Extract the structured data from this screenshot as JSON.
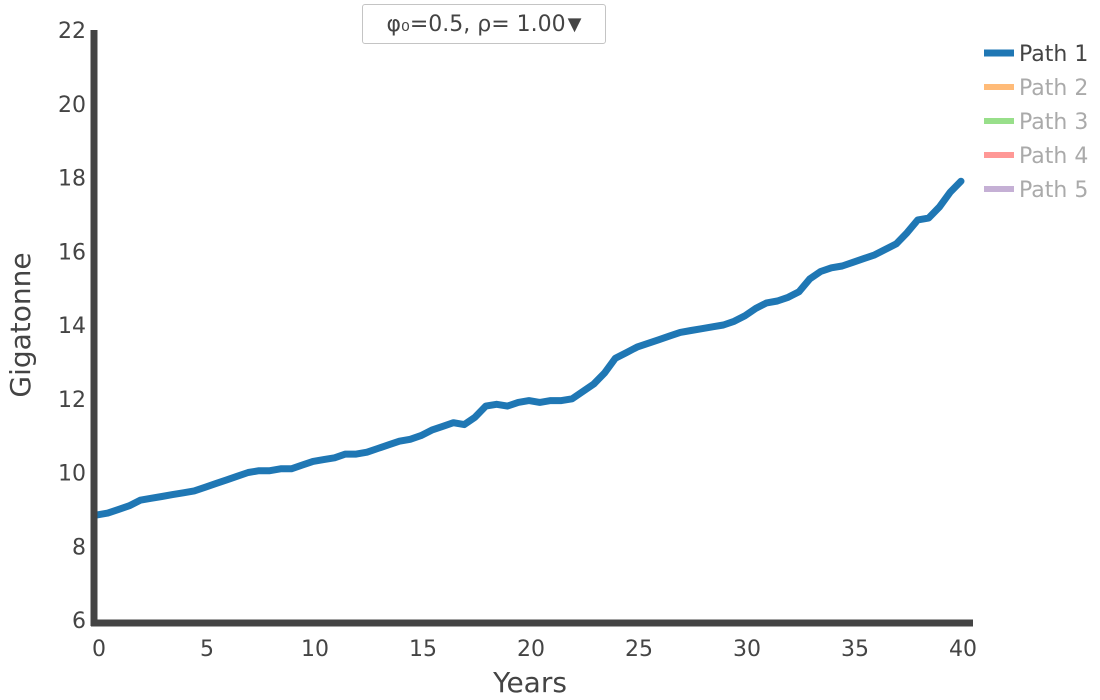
{
  "control": {
    "dropdown_label": "φ₀=0.5, ρ= 1.00",
    "dropdown_arrow": "▼"
  },
  "colors": {
    "axis": "#444444",
    "text": "#444444",
    "legend_inactive_text": "#aaaaaa"
  },
  "chart_data": {
    "type": "line",
    "title": "",
    "xlabel": "Years",
    "ylabel": "Gigatonne",
    "xlim": [
      0,
      40
    ],
    "ylim": [
      6,
      22
    ],
    "xticks": [
      0,
      5,
      10,
      15,
      20,
      25,
      30,
      35,
      40
    ],
    "yticks": [
      6,
      8,
      10,
      12,
      14,
      16,
      18,
      20,
      22
    ],
    "grid": false,
    "legend_position": "top-right",
    "series": [
      {
        "name": "Path 1",
        "color": "#1f77b4",
        "visible": true,
        "x": [
          0,
          0.5,
          1,
          1.5,
          2,
          2.5,
          3,
          3.5,
          4,
          4.5,
          5,
          5.5,
          6,
          6.5,
          7,
          7.5,
          8,
          8.5,
          9,
          9.5,
          10,
          10.5,
          11,
          11.5,
          12,
          12.5,
          13,
          13.5,
          14,
          14.5,
          15,
          15.5,
          16,
          16.5,
          17,
          17.5,
          18,
          18.5,
          19,
          19.5,
          20,
          20.5,
          21,
          21.5,
          22,
          22.5,
          23,
          23.5,
          24,
          24.5,
          25,
          25.5,
          26,
          26.5,
          27,
          27.5,
          28,
          28.5,
          29,
          29.5,
          30,
          30.5,
          31,
          31.5,
          32,
          32.5,
          33,
          33.5,
          34,
          34.5,
          35,
          35.5,
          36,
          36.5,
          37,
          37.5,
          38,
          38.5,
          39,
          39.5,
          40
        ],
        "values": [
          8.85,
          8.9,
          9.0,
          9.1,
          9.25,
          9.3,
          9.35,
          9.4,
          9.45,
          9.5,
          9.6,
          9.7,
          9.8,
          9.9,
          10.0,
          10.05,
          10.05,
          10.1,
          10.1,
          10.2,
          10.3,
          10.35,
          10.4,
          10.5,
          10.5,
          10.55,
          10.65,
          10.75,
          10.85,
          10.9,
          11.0,
          11.15,
          11.25,
          11.35,
          11.3,
          11.5,
          11.8,
          11.85,
          11.8,
          11.9,
          11.95,
          11.9,
          11.95,
          11.95,
          12.0,
          12.2,
          12.4,
          12.7,
          13.1,
          13.25,
          13.4,
          13.5,
          13.6,
          13.7,
          13.8,
          13.85,
          13.9,
          13.95,
          14.0,
          14.1,
          14.25,
          14.45,
          14.6,
          14.65,
          14.75,
          14.9,
          15.25,
          15.45,
          15.55,
          15.6,
          15.7,
          15.8,
          15.9,
          16.05,
          16.2,
          16.5,
          16.85,
          16.9,
          17.2,
          17.6,
          17.9
        ]
      },
      {
        "name": "Path 2",
        "color": "#ffbb78",
        "visible": false,
        "x": [],
        "values": []
      },
      {
        "name": "Path 3",
        "color": "#98df8a",
        "visible": false,
        "x": [],
        "values": []
      },
      {
        "name": "Path 4",
        "color": "#ff9896",
        "visible": false,
        "x": [],
        "values": []
      },
      {
        "name": "Path 5",
        "color": "#c5b0d5",
        "visible": false,
        "x": [],
        "values": []
      }
    ]
  }
}
